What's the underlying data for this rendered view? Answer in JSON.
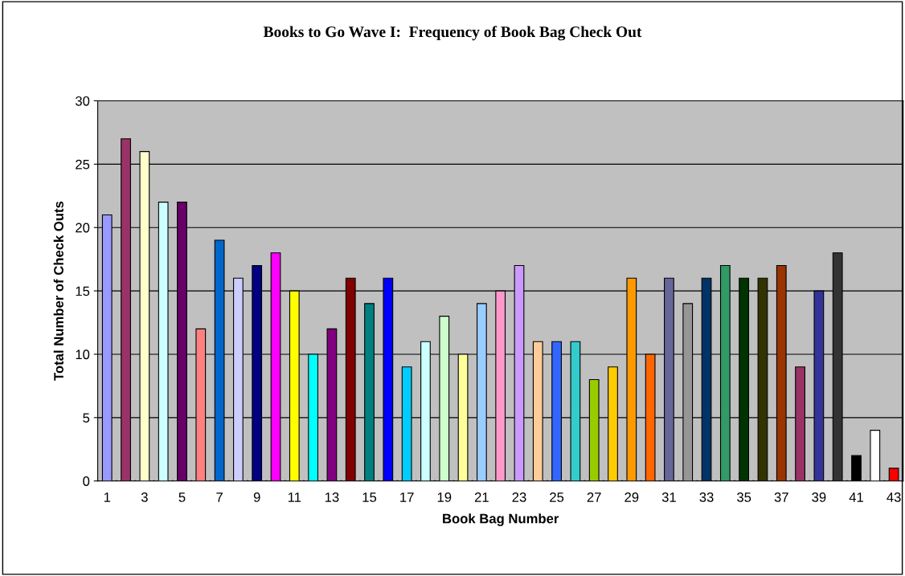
{
  "chart_data": {
    "type": "bar",
    "title": "Books to Go Wave I:  Frequency of Book Bag Check Out",
    "xlabel": "Book Bag Number",
    "ylabel": "Total Number of Check Outs",
    "categories": [
      "1",
      null,
      "3",
      null,
      "5",
      null,
      "7",
      null,
      "9",
      null,
      "11",
      null,
      "13",
      null,
      "15",
      null,
      "17",
      null,
      "19",
      null,
      "21",
      null,
      "23",
      null,
      "25",
      null,
      "27",
      null,
      "29",
      null,
      "31",
      null,
      "33",
      null,
      "35",
      null,
      "37",
      null,
      "39",
      null,
      "41",
      null,
      "43"
    ],
    "values": [
      21,
      27,
      26,
      22,
      22,
      12,
      19,
      16,
      17,
      18,
      15,
      10,
      12,
      16,
      14,
      16,
      9,
      11,
      13,
      10,
      14,
      15,
      17,
      11,
      11,
      11,
      8,
      9,
      16,
      10,
      16,
      14,
      16,
      17,
      16,
      16,
      17,
      9,
      15,
      18,
      2,
      4,
      1
    ],
    "colors": [
      "#9999ff",
      "#993366",
      "#ffffcc",
      "#ccffff",
      "#660066",
      "#ff8080",
      "#0066cc",
      "#ccccff",
      "#000080",
      "#ff00ff",
      "#ffff00",
      "#00ffff",
      "#800080",
      "#800000",
      "#008080",
      "#0000ff",
      "#00ccff",
      "#ccffff",
      "#ccffcc",
      "#ffff99",
      "#99ccff",
      "#ff99cc",
      "#cc99ff",
      "#ffcc99",
      "#3366ff",
      "#33cccc",
      "#99cc00",
      "#ffcc00",
      "#ff9900",
      "#ff6600",
      "#666699",
      "#969696",
      "#003366",
      "#339966",
      "#003300",
      "#333300",
      "#993300",
      "#993366",
      "#333399",
      "#333333",
      "#000000",
      "#ffffff",
      "#ff0000"
    ],
    "ylim": [
      0,
      30
    ],
    "yticks": [
      0,
      5,
      10,
      15,
      20,
      25,
      30
    ],
    "grid": "y",
    "legend": false
  }
}
